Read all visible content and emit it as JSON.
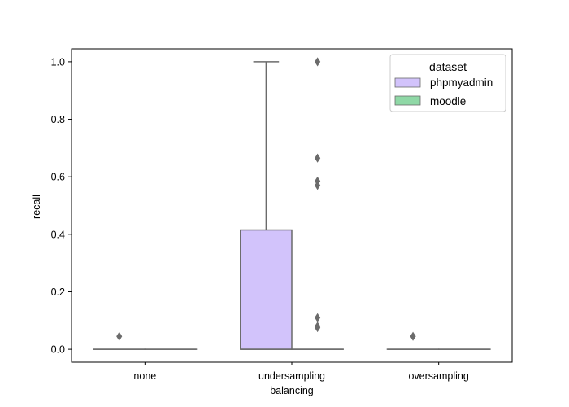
{
  "chart_data": {
    "type": "box",
    "xlabel": "balancing",
    "ylabel": "recall",
    "categories": [
      "none",
      "undersampling",
      "oversampling"
    ],
    "ylim": [
      -0.045,
      1.045
    ],
    "yticks": [
      0.0,
      0.2,
      0.4,
      0.6,
      0.8,
      1.0
    ],
    "ytick_labels": [
      "0.0",
      "0.2",
      "0.4",
      "0.6",
      "0.8",
      "1.0"
    ],
    "grid": false,
    "legend": {
      "title": "dataset",
      "placement": "top-right",
      "entries": [
        "phpmyadmin",
        "moodle"
      ]
    },
    "series": [
      {
        "name": "phpmyadmin",
        "color": "#d2c3fb",
        "boxes": [
          {
            "category": "none",
            "whisker_low": 0.0,
            "q1": 0.0,
            "median": 0.0,
            "q3": 0.0,
            "whisker_high": 0.0,
            "outliers": [
              0.045
            ]
          },
          {
            "category": "undersampling",
            "whisker_low": 0.0,
            "q1": 0.0,
            "median": 0.0,
            "q3": 0.415,
            "whisker_high": 1.0,
            "outliers": []
          },
          {
            "category": "oversampling",
            "whisker_low": 0.0,
            "q1": 0.0,
            "median": 0.0,
            "q3": 0.0,
            "whisker_high": 0.0,
            "outliers": [
              0.045
            ]
          }
        ]
      },
      {
        "name": "moodle",
        "color": "#8fd8a6",
        "boxes": [
          {
            "category": "none",
            "whisker_low": 0.0,
            "q1": 0.0,
            "median": 0.0,
            "q3": 0.0,
            "whisker_high": 0.0,
            "outliers": []
          },
          {
            "category": "undersampling",
            "whisker_low": 0.0,
            "q1": 0.0,
            "median": 0.0,
            "q3": 0.0,
            "whisker_high": 0.0,
            "outliers": [
              1.0,
              0.665,
              0.585,
              0.57,
              0.11,
              0.08,
              0.075
            ]
          },
          {
            "category": "oversampling",
            "whisker_low": 0.0,
            "q1": 0.0,
            "median": 0.0,
            "q3": 0.0,
            "whisker_high": 0.0,
            "outliers": []
          }
        ]
      }
    ],
    "line_color": "#6b6b6b"
  }
}
